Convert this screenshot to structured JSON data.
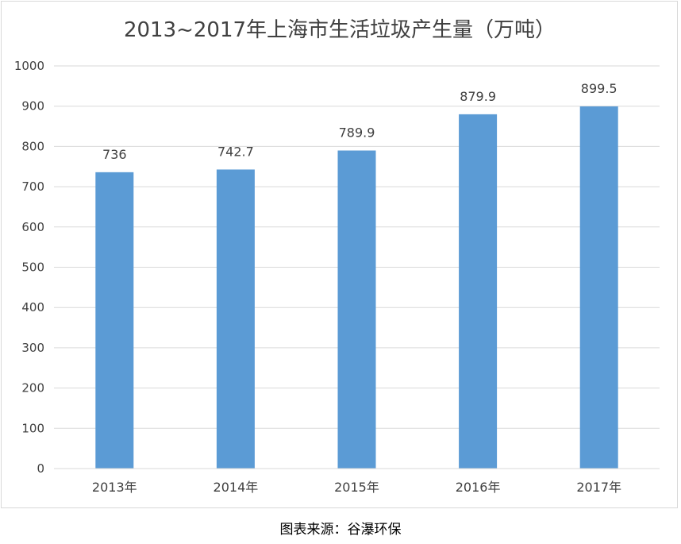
{
  "chart_data": {
    "type": "bar",
    "title": "2013~2017年上海市生活垃圾产生量（万吨）",
    "categories": [
      "2013年",
      "2014年",
      "2015年",
      "2016年",
      "2017年"
    ],
    "values": [
      736,
      742.7,
      789.9,
      879.9,
      899.5
    ],
    "data_labels": [
      "736",
      "742.7",
      "789.9",
      "879.9",
      "899.5"
    ],
    "ylim": [
      0,
      1000
    ],
    "yticks": [
      0,
      100,
      200,
      300,
      400,
      500,
      600,
      700,
      800,
      900,
      1000
    ],
    "xlabel": "",
    "ylabel": "",
    "grid": true,
    "legend": "none",
    "bar_color": "#5b9bd5",
    "grid_color": "#d9d9d9",
    "text_color": "#404040"
  },
  "source_note": "图表来源：谷瀑环保"
}
